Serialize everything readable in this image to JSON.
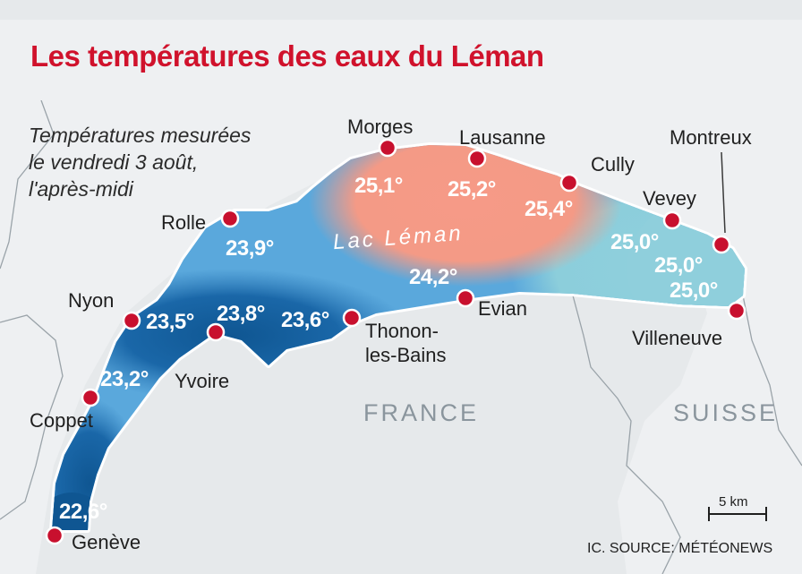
{
  "title": "Les températures des eaux du Léman",
  "subtitle": "Températures mesurées\nle vendredi 3 août,\nl'après-midi",
  "lake_name": "Lac Léman",
  "countries": {
    "france": "FRANCE",
    "suisse": "SUISSE"
  },
  "cities": {
    "morges": "Morges",
    "lausanne": "Lausanne",
    "cully": "Cully",
    "montreux": "Montreux",
    "vevey": "Vevey",
    "rolle": "Rolle",
    "nyon": "Nyon",
    "yvoire": "Yvoire",
    "thonon": "Thonon-\nles-Bains",
    "evian": "Evian",
    "villeneuve": "Villeneuve",
    "coppet": "Coppet",
    "geneve": "Genève"
  },
  "temperatures": {
    "morges": "25,1°",
    "lausanne": "25,2°",
    "cully": "25,4°",
    "rolle": "23,9°",
    "evian": "24,2°",
    "vevey": "25,0°",
    "montreux": "25,0°",
    "villeneuve": "25,0°",
    "nyon": "23,5°",
    "yvoire": "23,8°",
    "thonon": "23,6°",
    "coppet": "23,2°",
    "geneve": "22,6°"
  },
  "scale": "5 km",
  "source": "IC. SOURCE: MÉTÉONEWS",
  "colors": {
    "title": "#d0122c",
    "marker": "#c8102e",
    "warm": "#f2907f",
    "mid_blue": "#5aa8dc",
    "deep_blue": "#15609f",
    "teal": "#8fcfdc"
  }
}
